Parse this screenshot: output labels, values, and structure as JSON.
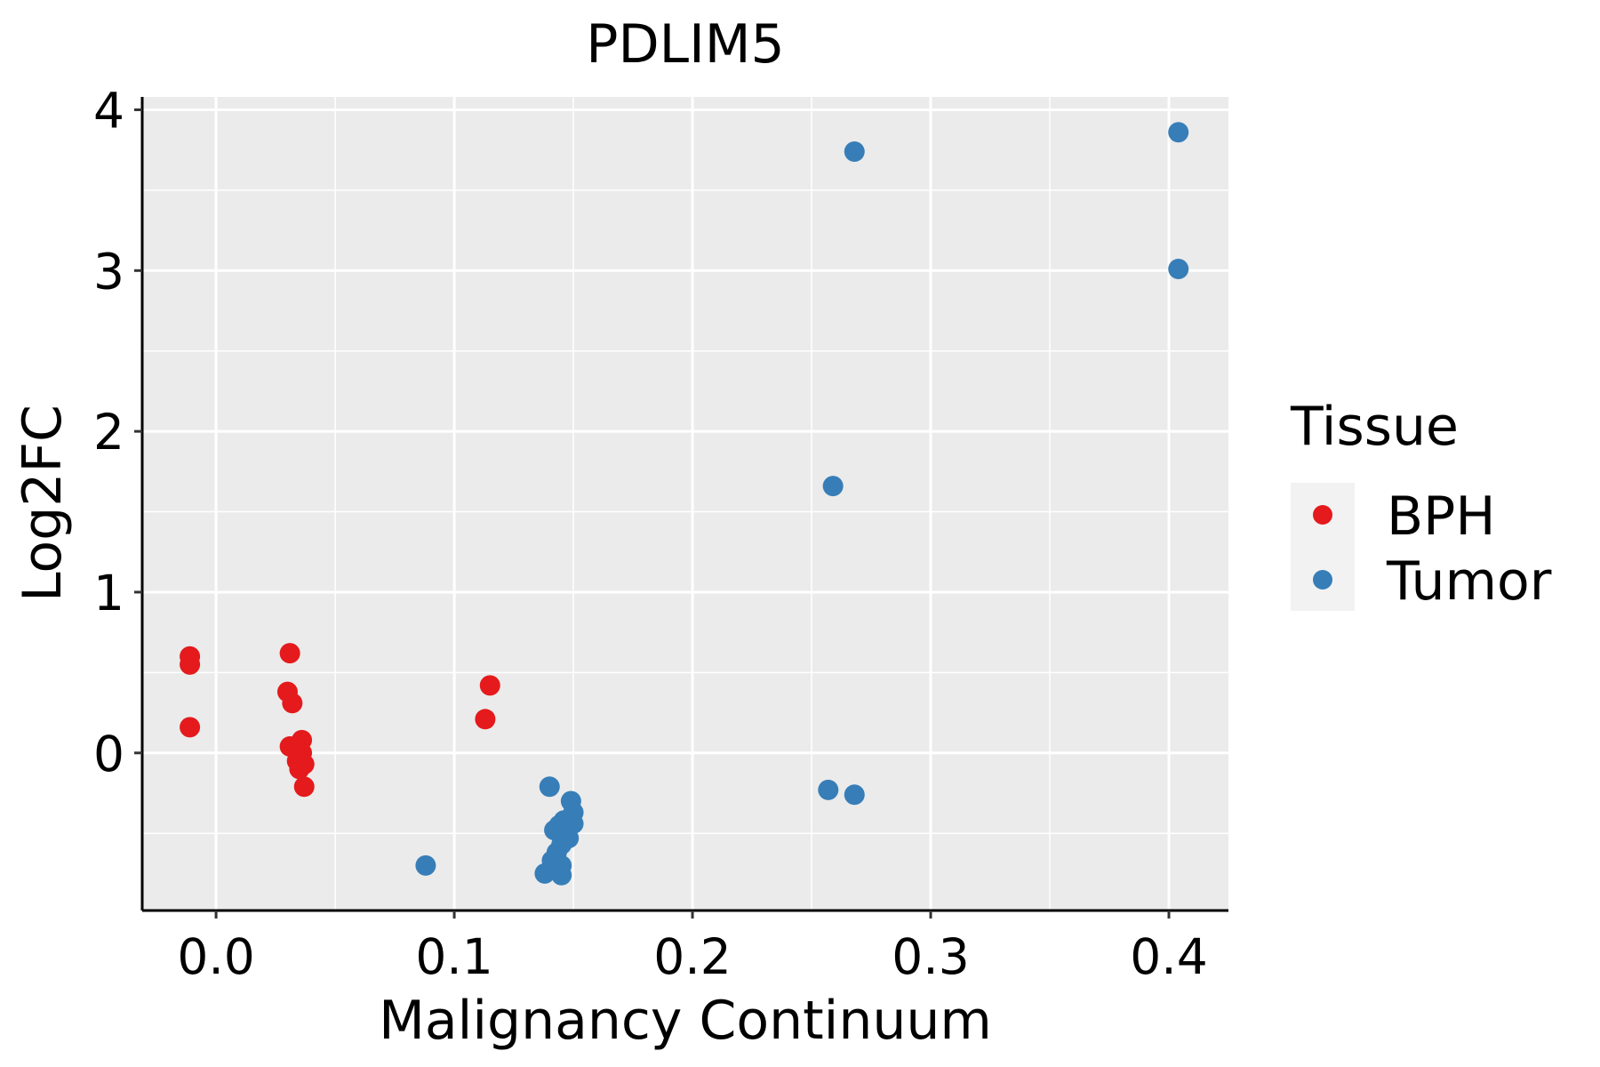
{
  "chart_data": {
    "type": "scatter",
    "title": "PDLIM5",
    "xlabel": "Malignancy Continuum",
    "ylabel": "Log2FC",
    "xlim": [
      -0.031,
      0.425
    ],
    "ylim": [
      -0.98,
      4.08
    ],
    "x_ticks": [
      0.0,
      0.1,
      0.2,
      0.3,
      0.4
    ],
    "x_tick_labels": [
      "0.0",
      "0.1",
      "0.2",
      "0.3",
      "0.4"
    ],
    "y_ticks": [
      0,
      1,
      2,
      3,
      4
    ],
    "y_tick_labels": [
      "0",
      "1",
      "2",
      "3",
      "4"
    ],
    "x_minor_ticks": [
      0.05,
      0.15,
      0.25,
      0.35
    ],
    "y_minor_ticks": [
      -0.5,
      0.5,
      1.5,
      2.5,
      3.5
    ],
    "grid": true,
    "legend": {
      "title": "Tissue",
      "position": "right",
      "entries": [
        {
          "label": "BPH",
          "color": "#E41A1C"
        },
        {
          "label": "Tumor",
          "color": "#377EB8"
        }
      ]
    },
    "series": [
      {
        "name": "BPH",
        "color": "#E41A1C",
        "points": [
          {
            "x": -0.011,
            "y": 0.6
          },
          {
            "x": -0.011,
            "y": 0.55
          },
          {
            "x": -0.011,
            "y": 0.16
          },
          {
            "x": 0.031,
            "y": 0.62
          },
          {
            "x": 0.03,
            "y": 0.38
          },
          {
            "x": 0.032,
            "y": 0.31
          },
          {
            "x": 0.036,
            "y": 0.08
          },
          {
            "x": 0.031,
            "y": 0.04
          },
          {
            "x": 0.036,
            "y": 0.0
          },
          {
            "x": 0.034,
            "y": -0.05
          },
          {
            "x": 0.037,
            "y": -0.07
          },
          {
            "x": 0.035,
            "y": -0.1
          },
          {
            "x": 0.037,
            "y": -0.21
          },
          {
            "x": 0.115,
            "y": 0.42
          },
          {
            "x": 0.113,
            "y": 0.21
          }
        ]
      },
      {
        "name": "Tumor",
        "color": "#377EB8",
        "points": [
          {
            "x": 0.088,
            "y": -0.7
          },
          {
            "x": 0.14,
            "y": -0.21
          },
          {
            "x": 0.149,
            "y": -0.3
          },
          {
            "x": 0.15,
            "y": -0.37
          },
          {
            "x": 0.146,
            "y": -0.42
          },
          {
            "x": 0.15,
            "y": -0.44
          },
          {
            "x": 0.144,
            "y": -0.45
          },
          {
            "x": 0.142,
            "y": -0.48
          },
          {
            "x": 0.147,
            "y": -0.51
          },
          {
            "x": 0.148,
            "y": -0.53
          },
          {
            "x": 0.145,
            "y": -0.57
          },
          {
            "x": 0.143,
            "y": -0.62
          },
          {
            "x": 0.141,
            "y": -0.67
          },
          {
            "x": 0.145,
            "y": -0.7
          },
          {
            "x": 0.141,
            "y": -0.72
          },
          {
            "x": 0.138,
            "y": -0.75
          },
          {
            "x": 0.145,
            "y": -0.76
          },
          {
            "x": 0.257,
            "y": -0.23
          },
          {
            "x": 0.268,
            "y": -0.26
          },
          {
            "x": 0.259,
            "y": 1.66
          },
          {
            "x": 0.268,
            "y": 3.74
          },
          {
            "x": 0.404,
            "y": 3.01
          },
          {
            "x": 0.404,
            "y": 3.86
          }
        ]
      }
    ]
  }
}
